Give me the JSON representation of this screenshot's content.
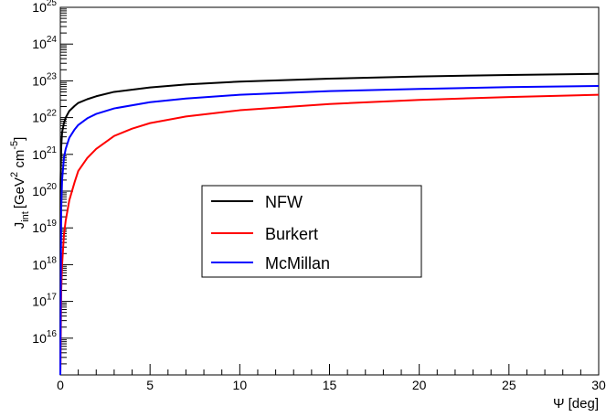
{
  "chart_data": {
    "type": "line",
    "title": "",
    "xlabel": "Ψ [deg]",
    "ylabel": "J_int [GeV^2 cm^-5]",
    "ylabel_parts": {
      "j": "J",
      "int": "int",
      "unit": "[GeV",
      "sq": "2",
      "cm": " cm",
      "pow": "-5",
      "close": "]"
    },
    "xlim": [
      0,
      30
    ],
    "ylim_log10": [
      15,
      25
    ],
    "yscale": "log",
    "grid": false,
    "legend_position": "center",
    "x_ticks": [
      0,
      5,
      10,
      15,
      20,
      25,
      30
    ],
    "y_ticks_exp": [
      16,
      17,
      18,
      19,
      20,
      21,
      22,
      23,
      24,
      25
    ],
    "y_tick_base": "10",
    "series": [
      {
        "name": "NFW",
        "color": "#000000",
        "x": [
          0.01,
          0.05,
          0.1,
          0.2,
          0.3,
          0.5,
          0.8,
          1,
          1.5,
          2,
          3,
          5,
          7,
          10,
          15,
          20,
          25,
          30
        ],
        "log10_y": [
          20.2,
          21.2,
          21.6,
          21.85,
          22.0,
          22.18,
          22.32,
          22.4,
          22.5,
          22.58,
          22.7,
          22.82,
          22.9,
          22.98,
          23.06,
          23.12,
          23.16,
          23.19
        ]
      },
      {
        "name": "Burkert",
        "color": "#ff0000",
        "x": [
          0.01,
          0.05,
          0.1,
          0.2,
          0.3,
          0.5,
          0.8,
          1,
          1.5,
          2,
          3,
          4,
          5,
          7,
          10,
          15,
          20,
          25,
          30
        ],
        "log10_y": [
          15.3,
          17.3,
          18.0,
          18.8,
          19.2,
          19.75,
          20.25,
          20.55,
          20.9,
          21.15,
          21.5,
          21.7,
          21.85,
          22.03,
          22.2,
          22.37,
          22.48,
          22.56,
          22.62
        ]
      },
      {
        "name": "McMillan",
        "color": "#0000ff",
        "x": [
          0.01,
          0.05,
          0.1,
          0.2,
          0.3,
          0.5,
          0.8,
          1,
          1.5,
          2,
          3,
          5,
          7,
          10,
          15,
          20,
          25,
          30
        ],
        "log10_y": [
          16.0,
          19.5,
          20.3,
          20.9,
          21.15,
          21.45,
          21.68,
          21.8,
          21.98,
          22.1,
          22.25,
          22.42,
          22.52,
          22.62,
          22.72,
          22.78,
          22.83,
          22.86
        ]
      }
    ]
  }
}
